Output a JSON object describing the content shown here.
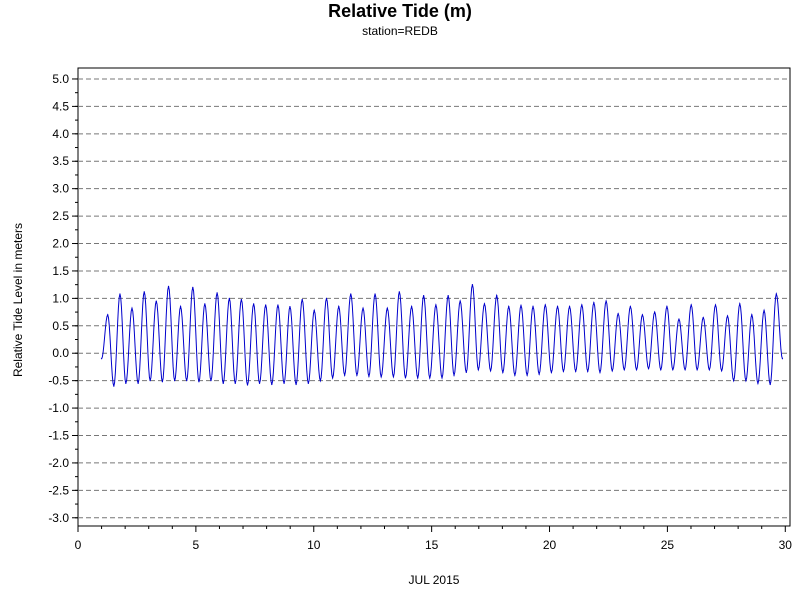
{
  "chart_data": {
    "type": "line",
    "title": "Relative Tide (m)",
    "subtitle": "station=REDB",
    "xlabel": "JUL 2015",
    "ylabel": "Relative Tide Level in meters",
    "xlim": [
      0,
      30.2
    ],
    "ylim": [
      -3.15,
      5.2
    ],
    "x_ticks": [
      0,
      5,
      10,
      15,
      20,
      25,
      30
    ],
    "x_tick_labels": [
      "0",
      "5",
      "10",
      "15",
      "20",
      "25",
      "30"
    ],
    "y_ticks": [
      5.0,
      4.5,
      4.0,
      3.5,
      3.0,
      2.5,
      2.0,
      1.5,
      1.0,
      0.5,
      0.0,
      -0.5,
      -1.0,
      -1.5,
      -2.0,
      -2.5,
      -3.0
    ],
    "y_tick_labels": [
      "5.0",
      "4.5",
      "4.0",
      "3.5",
      "3.0",
      "2.5",
      "2.0",
      "1.5",
      "1.0",
      "0.5",
      "0.0",
      "-0.5",
      "-1.0",
      "-1.5",
      "-2.0",
      "-2.5",
      "-3.0"
    ],
    "grid": "dashed horizontal lines at major y ticks",
    "line_color": "#0000cc",
    "series": [
      {
        "x": [
          1.0,
          1.26,
          1.52,
          1.78,
          2.03,
          2.29,
          2.55,
          2.81,
          3.06,
          3.32,
          3.58,
          3.84,
          4.1,
          4.35,
          4.61,
          4.87,
          5.13,
          5.38,
          5.64,
          5.9,
          6.16,
          6.42,
          6.67,
          6.93,
          7.19,
          7.45,
          7.7,
          7.96,
          8.22,
          8.48,
          8.74,
          8.99,
          9.25,
          9.51,
          9.77,
          10.02,
          10.28,
          10.54,
          10.8,
          11.06,
          11.31,
          11.57,
          11.83,
          12.09,
          12.34,
          12.6,
          12.86,
          13.12,
          13.38,
          13.63,
          13.89,
          14.15,
          14.41,
          14.66,
          14.92,
          15.18,
          15.44,
          15.7,
          15.95,
          16.21,
          16.47,
          16.73,
          16.98,
          17.24,
          17.5,
          17.76,
          18.02,
          18.27,
          18.53,
          18.79,
          19.05,
          19.3,
          19.56,
          19.82,
          20.08,
          20.34,
          20.59,
          20.85,
          21.11,
          21.37,
          21.62,
          21.88,
          22.14,
          22.4,
          22.66,
          22.91,
          23.17,
          23.43,
          23.69,
          23.94,
          24.2,
          24.46,
          24.72,
          24.98,
          25.23,
          25.49,
          25.75,
          26.01,
          26.26,
          26.52,
          26.78,
          27.04,
          27.3,
          27.55,
          27.81,
          28.07,
          28.33,
          28.58,
          28.84,
          29.1,
          29.36,
          29.62,
          29.88
        ],
        "y": [
          -0.1,
          0.7,
          -0.6,
          1.08,
          -0.55,
          0.82,
          -0.55,
          1.12,
          -0.5,
          0.95,
          -0.52,
          1.22,
          -0.5,
          0.85,
          -0.5,
          1.2,
          -0.52,
          0.9,
          -0.5,
          1.1,
          -0.55,
          1.0,
          -0.55,
          0.98,
          -0.58,
          0.9,
          -0.55,
          0.88,
          -0.57,
          0.88,
          -0.55,
          0.85,
          -0.57,
          0.98,
          -0.55,
          0.78,
          -0.5,
          1.0,
          -0.45,
          0.85,
          -0.4,
          1.08,
          -0.4,
          0.82,
          -0.42,
          1.08,
          -0.43,
          0.82,
          -0.43,
          1.12,
          -0.45,
          0.85,
          -0.45,
          1.05,
          -0.45,
          0.88,
          -0.45,
          1.05,
          -0.4,
          0.95,
          -0.35,
          1.25,
          -0.3,
          0.9,
          -0.32,
          1.05,
          -0.35,
          0.85,
          -0.4,
          0.87,
          -0.4,
          0.85,
          -0.38,
          0.88,
          -0.35,
          0.85,
          -0.33,
          0.85,
          -0.33,
          0.88,
          -0.33,
          0.92,
          -0.35,
          0.95,
          -0.32,
          0.72,
          -0.3,
          0.85,
          -0.3,
          0.7,
          -0.28,
          0.75,
          -0.3,
          0.85,
          -0.3,
          0.62,
          -0.3,
          0.88,
          -0.3,
          0.65,
          -0.3,
          0.88,
          -0.32,
          0.68,
          -0.5,
          0.9,
          -0.5,
          0.7,
          -0.55,
          0.78,
          -0.57,
          1.08,
          -0.1
        ]
      }
    ]
  }
}
